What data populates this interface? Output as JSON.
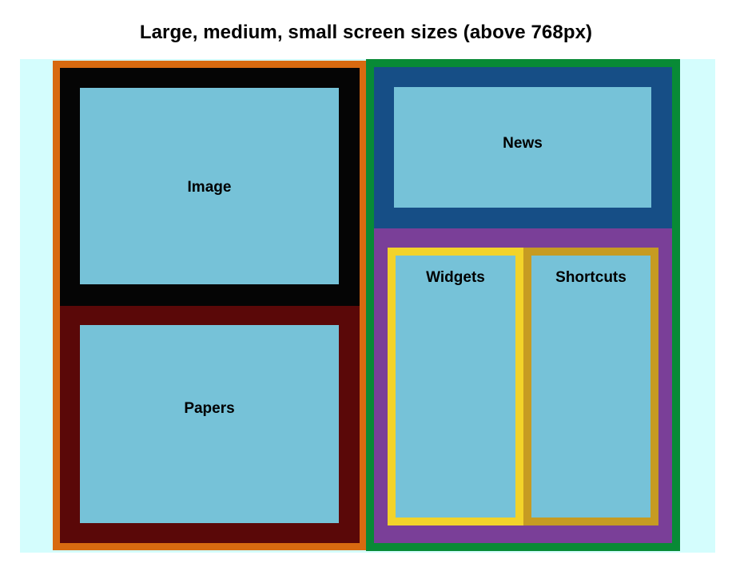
{
  "title": "Large, medium, small screen sizes (above 768px)",
  "boxes": {
    "image": "Image",
    "papers": "Papers",
    "news": "News",
    "widgets": "Widgets",
    "shortcuts": "Shortcuts"
  },
  "colors": {
    "background": "#d4fdfd",
    "left_column": "#d86a10",
    "right_column": "#088a36",
    "image_frame": "#050505",
    "papers_frame": "#5a0808",
    "news_frame": "#164e86",
    "bottom_right_frame": "#7a3f98",
    "widgets_frame": "#f2d32a",
    "shortcuts_frame": "#c69b22",
    "content": "#76c2d8"
  }
}
